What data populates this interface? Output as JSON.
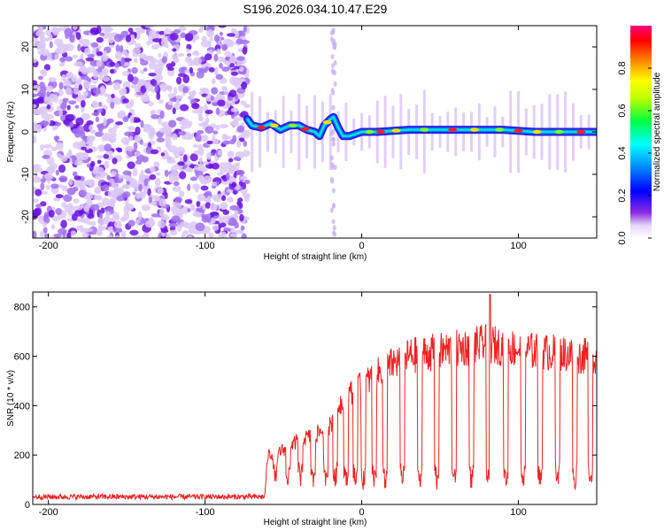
{
  "figure": {
    "title": "S196.2026.034.10.47.E29"
  },
  "chart_data": [
    {
      "type": "heatmap",
      "title": "",
      "xlabel": "Height of straight line (km)",
      "ylabel": "Frequency (Hz)",
      "xlim": [
        -210,
        150
      ],
      "ylim": [
        -25,
        25
      ],
      "x_ticks": [
        -200,
        -100,
        0,
        100
      ],
      "y_ticks": [
        -20,
        -10,
        0,
        10,
        20
      ],
      "description_points": {
        "noise_region_x_range": [
          -210,
          -73
        ],
        "ridge": [
          {
            "x": -73,
            "f": 3
          },
          {
            "x": -70,
            "f": 1.5
          },
          {
            "x": -64,
            "f": 1
          },
          {
            "x": -58,
            "f": 2
          },
          {
            "x": -52,
            "f": 0.5
          },
          {
            "x": -46,
            "f": 1.5
          },
          {
            "x": -40,
            "f": 1.5
          },
          {
            "x": -35,
            "f": 0.5
          },
          {
            "x": -30,
            "f": 0
          },
          {
            "x": -27,
            "f": -1
          },
          {
            "x": -24,
            "f": 1.5
          },
          {
            "x": -20,
            "f": 3
          },
          {
            "x": -18,
            "f": 3.5
          },
          {
            "x": -15,
            "f": 1
          },
          {
            "x": -12,
            "f": -1
          },
          {
            "x": -8,
            "f": -1
          },
          {
            "x": -4,
            "f": -0.5
          },
          {
            "x": 0,
            "f": 0
          },
          {
            "x": 10,
            "f": 0
          },
          {
            "x": 30,
            "f": 0.5
          },
          {
            "x": 50,
            "f": 0.5
          },
          {
            "x": 70,
            "f": 0.5
          },
          {
            "x": 90,
            "f": 0.5
          },
          {
            "x": 110,
            "f": 0
          },
          {
            "x": 130,
            "f": 0
          },
          {
            "x": 150,
            "f": 0
          }
        ]
      },
      "colorbar": {
        "label": "Normalized spectral amplitude",
        "ticks": [
          0.0,
          0.2,
          0.4,
          0.6,
          0.8
        ],
        "range": [
          0,
          1
        ]
      }
    },
    {
      "type": "line",
      "title": "",
      "xlabel": "Height of straight line (km)",
      "ylabel": "SNR (10 * v/v)",
      "xlim": [
        -210,
        150
      ],
      "ylim": [
        0,
        860
      ],
      "x_ticks": [
        -200,
        -100,
        0,
        100
      ],
      "y_ticks": [
        0,
        200,
        400,
        600,
        800
      ],
      "series": [
        {
          "name": "SNR",
          "color": "#ee2222",
          "envelope": [
            {
              "x": -210,
              "y": 25
            },
            {
              "x": -62,
              "y": 25
            },
            {
              "x": -60,
              "y": 200
            },
            {
              "x": -50,
              "y": 220
            },
            {
              "x": -40,
              "y": 260
            },
            {
              "x": -30,
              "y": 280
            },
            {
              "x": -20,
              "y": 320
            },
            {
              "x": -15,
              "y": 400
            },
            {
              "x": -10,
              "y": 440
            },
            {
              "x": 0,
              "y": 480
            },
            {
              "x": 10,
              "y": 530
            },
            {
              "x": 20,
              "y": 570
            },
            {
              "x": 30,
              "y": 600
            },
            {
              "x": 40,
              "y": 610
            },
            {
              "x": 50,
              "y": 620
            },
            {
              "x": 60,
              "y": 630
            },
            {
              "x": 70,
              "y": 640
            },
            {
              "x": 80,
              "y": 650
            },
            {
              "x": 90,
              "y": 640
            },
            {
              "x": 100,
              "y": 630
            },
            {
              "x": 110,
              "y": 620
            },
            {
              "x": 120,
              "y": 615
            },
            {
              "x": 130,
              "y": 610
            },
            {
              "x": 140,
              "y": 600
            },
            {
              "x": 150,
              "y": 600
            }
          ],
          "dips_x": [
            -55,
            -47,
            -39,
            -31,
            -23,
            -17,
            -10,
            -4,
            1,
            8,
            15,
            26,
            37,
            48,
            59,
            70,
            81,
            92,
            103,
            114,
            125,
            136,
            146
          ],
          "dip_floor": 100,
          "peaks": [
            {
              "x": 82,
              "y": 850
            }
          ]
        }
      ]
    }
  ]
}
